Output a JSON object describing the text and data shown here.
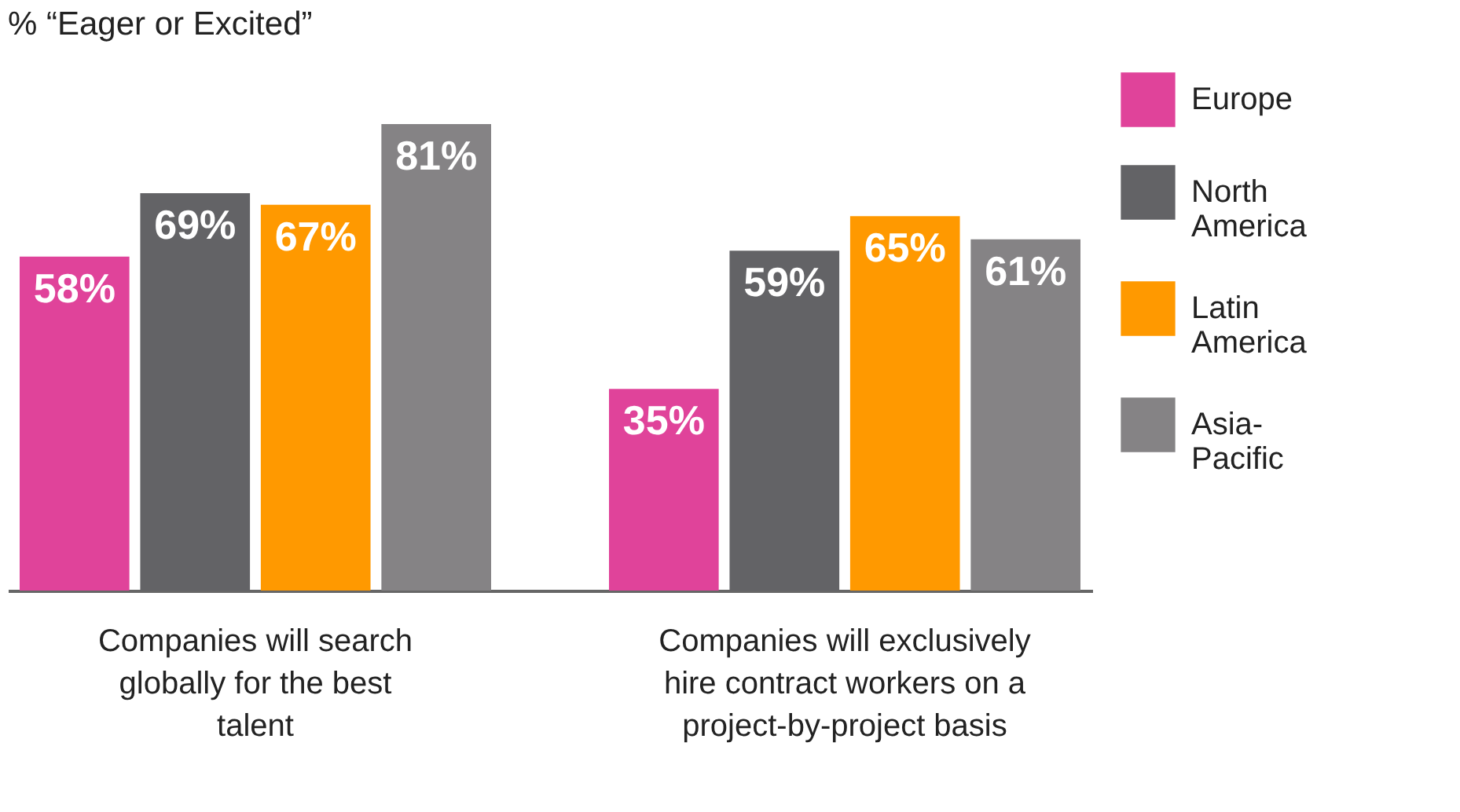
{
  "chart_data": {
    "type": "bar",
    "title": "% “Eager or Excited”",
    "categories": [
      "Companies will search globally for the best talent",
      "Companies will exclusively hire contract workers on a project-by-project basis"
    ],
    "series": [
      {
        "name": "Europe",
        "color": "#e0439a",
        "values": [
          58,
          35
        ],
        "value_labels": [
          "58%",
          "35%"
        ]
      },
      {
        "name": "North America",
        "color": "#636366",
        "values": [
          69,
          59
        ],
        "value_labels": [
          "69%",
          "59%"
        ]
      },
      {
        "name": "Latin America",
        "color": "#ff9900",
        "values": [
          67,
          65
        ],
        "value_labels": [
          "67%",
          "65%"
        ]
      },
      {
        "name": "Asia-Pacific",
        "color": "#858385",
        "values": [
          81,
          61
        ],
        "value_labels": [
          "81%",
          "61%"
        ]
      }
    ],
    "tick_labels": "x",
    "legend": "right"
  }
}
